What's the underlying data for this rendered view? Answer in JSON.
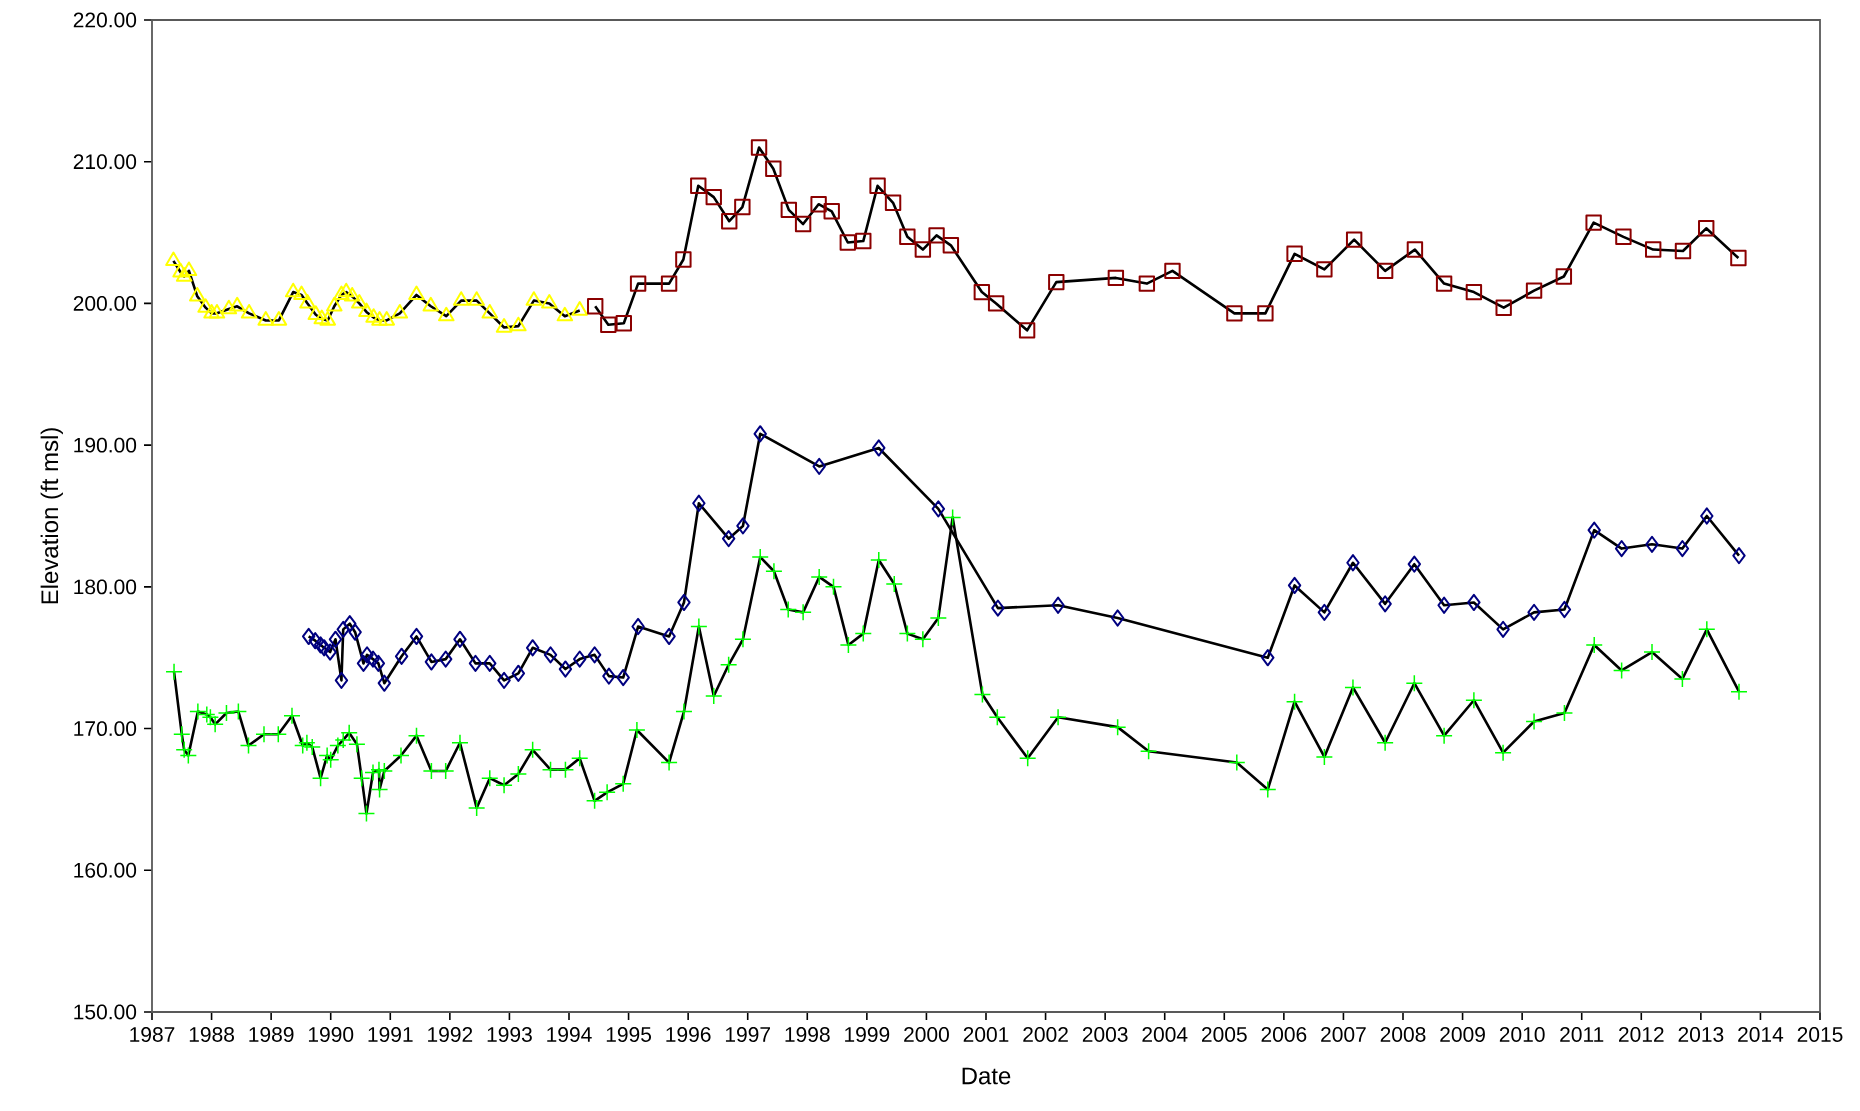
{
  "chart_data": {
    "type": "line",
    "xlabel": "Date",
    "ylabel": "Elevation (ft msl)",
    "xlim": [
      1987,
      2015
    ],
    "xticks": [
      1987,
      1988,
      1989,
      1990,
      1991,
      1992,
      1993,
      1994,
      1995,
      1996,
      1997,
      1998,
      1999,
      2000,
      2001,
      2002,
      2003,
      2004,
      2005,
      2006,
      2007,
      2008,
      2009,
      2010,
      2011,
      2012,
      2013,
      2014,
      2015
    ],
    "ylim": [
      150,
      220
    ],
    "yticks": [
      {
        "value": 150,
        "label": "150.00"
      },
      {
        "value": 160,
        "label": "160.00"
      },
      {
        "value": 170,
        "label": "170.00"
      },
      {
        "value": 180,
        "label": "180.00"
      },
      {
        "value": 190,
        "label": "190.00"
      },
      {
        "value": 200,
        "label": "200.00"
      },
      {
        "value": 210,
        "label": "210.00"
      },
      {
        "value": 220,
        "label": "220.00"
      }
    ],
    "series": [
      {
        "color": "#ffff00",
        "marker": "triangle",
        "x": [
          1987.36,
          1987.48,
          1987.54,
          1987.62,
          1987.76,
          1987.9,
          1988.0,
          1988.09,
          1988.29,
          1988.43,
          1988.63,
          1988.91,
          1989.13,
          1989.37,
          1989.51,
          1989.61,
          1989.75,
          1989.85,
          1989.95,
          1990.06,
          1990.18,
          1990.26,
          1990.36,
          1990.48,
          1990.6,
          1990.72,
          1990.82,
          1990.94,
          1991.16,
          1991.44,
          1991.68,
          1991.94,
          1992.19,
          1992.45,
          1992.67,
          1992.91,
          1993.15,
          1993.41,
          1993.67,
          1993.93,
          1994.18
        ],
        "values": [
          203.0,
          202.2,
          201.9,
          202.3,
          200.5,
          199.7,
          199.3,
          199.3,
          199.6,
          199.8,
          199.3,
          198.8,
          198.8,
          200.8,
          200.6,
          200.0,
          199.2,
          198.9,
          198.8,
          199.8,
          200.6,
          200.8,
          200.5,
          200.0,
          199.4,
          199.0,
          198.8,
          198.8,
          199.3,
          200.6,
          199.8,
          199.1,
          200.2,
          200.2,
          199.3,
          198.3,
          198.4,
          200.2,
          200.0,
          199.1,
          199.5
        ]
      },
      {
        "color": "#8b0000",
        "marker": "square",
        "x": [
          1994.44,
          1994.66,
          1994.92,
          1995.16,
          1995.68,
          1995.92,
          1996.17,
          1996.43,
          1996.69,
          1996.91,
          1997.19,
          1997.43,
          1997.69,
          1997.93,
          1998.19,
          1998.41,
          1998.68,
          1998.94,
          1999.18,
          1999.44,
          1999.68,
          1999.94,
          2000.17,
          2000.41,
          2000.93,
          2001.17,
          2001.69,
          2002.18,
          2003.18,
          2003.7,
          2004.13,
          2005.17,
          2005.69,
          2006.18,
          2006.68,
          2007.18,
          2007.7,
          2008.2,
          2008.69,
          2009.19,
          2009.69,
          2010.2,
          2010.7,
          2011.2,
          2011.7,
          2012.2,
          2012.7,
          2013.09,
          2013.63
        ],
        "values": [
          199.8,
          198.5,
          198.6,
          201.4,
          201.4,
          203.1,
          208.3,
          207.5,
          205.8,
          206.8,
          211.0,
          209.5,
          206.6,
          205.6,
          207.0,
          206.5,
          204.3,
          204.4,
          208.3,
          207.1,
          204.7,
          203.8,
          204.8,
          204.1,
          200.8,
          200.0,
          198.1,
          201.5,
          201.8,
          201.4,
          202.3,
          199.3,
          199.3,
          203.5,
          202.4,
          204.5,
          202.3,
          203.8,
          201.4,
          200.8,
          199.7,
          200.9,
          201.9,
          205.7,
          204.7,
          203.8,
          203.7,
          205.3,
          203.2
        ]
      },
      {
        "color": "#000080",
        "marker": "diamond",
        "x": [
          1989.63,
          1989.74,
          1989.83,
          1989.89,
          1989.99,
          1990.08,
          1990.18,
          1990.21,
          1990.32,
          1990.41,
          1990.55,
          1990.61,
          1990.71,
          1990.8,
          1990.9,
          1991.19,
          1991.44,
          1991.69,
          1991.93,
          1992.17,
          1992.43,
          1992.67,
          1992.91,
          1993.15,
          1993.39,
          1993.69,
          1993.94,
          1994.18,
          1994.43,
          1994.67,
          1994.91,
          1995.16,
          1995.68,
          1995.93,
          1996.18,
          1996.68,
          1996.92,
          1997.21,
          1998.2,
          1999.2,
          2000.2,
          2001.2,
          2002.21,
          2003.21,
          2005.73,
          2006.18,
          2006.68,
          2007.16,
          2007.7,
          2008.19,
          2008.69,
          2009.19,
          2009.68,
          2010.2,
          2010.71,
          2011.21,
          2011.67,
          2012.18,
          2012.69,
          2013.1,
          2013.64
        ],
        "values": [
          176.5,
          176.2,
          175.9,
          175.7,
          175.4,
          176.3,
          173.4,
          177.0,
          177.4,
          176.8,
          174.6,
          175.2,
          174.9,
          174.6,
          173.2,
          175.1,
          176.5,
          174.7,
          174.9,
          176.3,
          174.6,
          174.6,
          173.4,
          173.9,
          175.7,
          175.2,
          174.2,
          174.9,
          175.2,
          173.7,
          173.6,
          177.2,
          176.5,
          178.9,
          185.9,
          183.4,
          184.3,
          190.8,
          188.5,
          189.8,
          185.5,
          178.5,
          178.7,
          177.8,
          175.0,
          180.1,
          178.2,
          181.7,
          178.8,
          181.6,
          178.7,
          178.9,
          177.0,
          178.2,
          178.4,
          184.0,
          182.7,
          183.0,
          182.7,
          185.0,
          182.2
        ]
      },
      {
        "color": "#00ff00",
        "marker": "cross",
        "x": [
          1987.37,
          1987.5,
          1987.54,
          1987.61,
          1987.77,
          1987.92,
          1987.98,
          1988.06,
          1988.25,
          1988.45,
          1988.62,
          1988.88,
          1989.12,
          1989.35,
          1989.53,
          1989.6,
          1989.69,
          1989.83,
          1989.94,
          1990.0,
          1990.12,
          1990.21,
          1990.31,
          1990.44,
          1990.52,
          1990.6,
          1990.71,
          1990.81,
          1990.82,
          1990.9,
          1991.18,
          1991.44,
          1991.69,
          1991.93,
          1992.17,
          1992.45,
          1992.67,
          1992.91,
          1993.15,
          1993.39,
          1993.69,
          1993.94,
          1994.18,
          1994.43,
          1994.64,
          1994.91,
          1995.14,
          1995.68,
          1995.93,
          1996.18,
          1996.43,
          1996.68,
          1996.92,
          1997.21,
          1997.44,
          1997.68,
          1997.93,
          1998.2,
          1998.44,
          1998.69,
          1998.94,
          1999.2,
          1999.46,
          1999.68,
          1999.94,
          2000.2,
          2000.44,
          2000.94,
          2001.19,
          2001.7,
          2002.21,
          2003.21,
          2003.73,
          2005.21,
          2005.73,
          2006.18,
          2006.68,
          2007.16,
          2007.7,
          2008.19,
          2008.69,
          2009.19,
          2009.68,
          2010.2,
          2010.71,
          2011.21,
          2011.67,
          2012.18,
          2012.69,
          2013.1,
          2013.64
        ],
        "values": [
          174.0,
          169.6,
          168.5,
          168.1,
          171.2,
          171.0,
          170.8,
          170.3,
          171.1,
          171.2,
          168.8,
          169.6,
          169.6,
          170.9,
          168.8,
          169.0,
          168.7,
          166.5,
          168.1,
          167.8,
          168.8,
          169.2,
          169.7,
          168.9,
          166.5,
          164.0,
          166.9,
          167.1,
          165.7,
          167.0,
          168.1,
          169.5,
          167.0,
          167.0,
          169.0,
          164.4,
          166.5,
          166.0,
          166.8,
          168.5,
          167.1,
          167.1,
          167.9,
          164.9,
          165.5,
          166.1,
          169.9,
          167.6,
          171.2,
          177.2,
          172.3,
          174.5,
          176.3,
          182.1,
          181.1,
          178.4,
          178.2,
          180.7,
          180.0,
          175.9,
          176.7,
          181.9,
          180.2,
          176.7,
          176.3,
          177.8,
          184.9,
          172.4,
          170.8,
          167.9,
          170.8,
          170.1,
          168.4,
          167.6,
          165.7,
          171.9,
          168.0,
          172.9,
          169.0,
          173.2,
          169.5,
          172.0,
          168.3,
          170.5,
          171.1,
          175.9,
          174.1,
          175.4,
          173.5,
          177.0,
          172.6
        ]
      }
    ]
  }
}
